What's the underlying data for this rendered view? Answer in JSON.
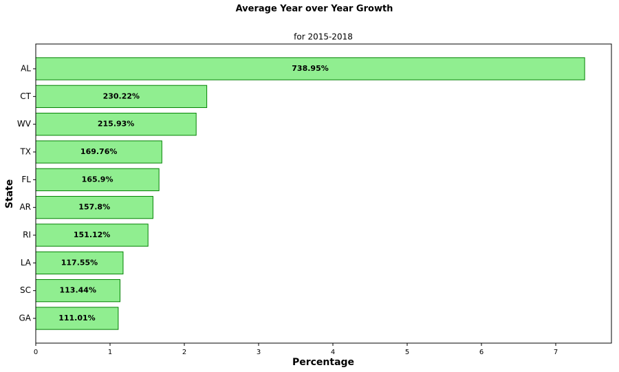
{
  "chart_data": {
    "type": "barh",
    "title": "Average Year over Year Growth",
    "subtitle": "for 2015-2018",
    "xlabel": "Percentage",
    "ylabel": "State",
    "categories": [
      "AL",
      "CT",
      "WV",
      "TX",
      "FL",
      "AR",
      "RI",
      "LA",
      "SC",
      "GA"
    ],
    "values": [
      7.3895,
      2.3022,
      2.1593,
      1.6976,
      1.659,
      1.578,
      1.5112,
      1.1755,
      1.1344,
      1.1101
    ],
    "value_labels": [
      "738.95%",
      "230.22%",
      "215.93%",
      "169.76%",
      "165.9%",
      "157.8%",
      "151.12%",
      "117.55%",
      "113.44%",
      "111.01%"
    ],
    "color": "#90ee90",
    "edgecolor": "#008000",
    "xlim": [
      0,
      7.75
    ],
    "xticks": [
      0,
      1,
      2,
      3,
      4,
      5,
      6,
      7
    ],
    "grid": false
  }
}
